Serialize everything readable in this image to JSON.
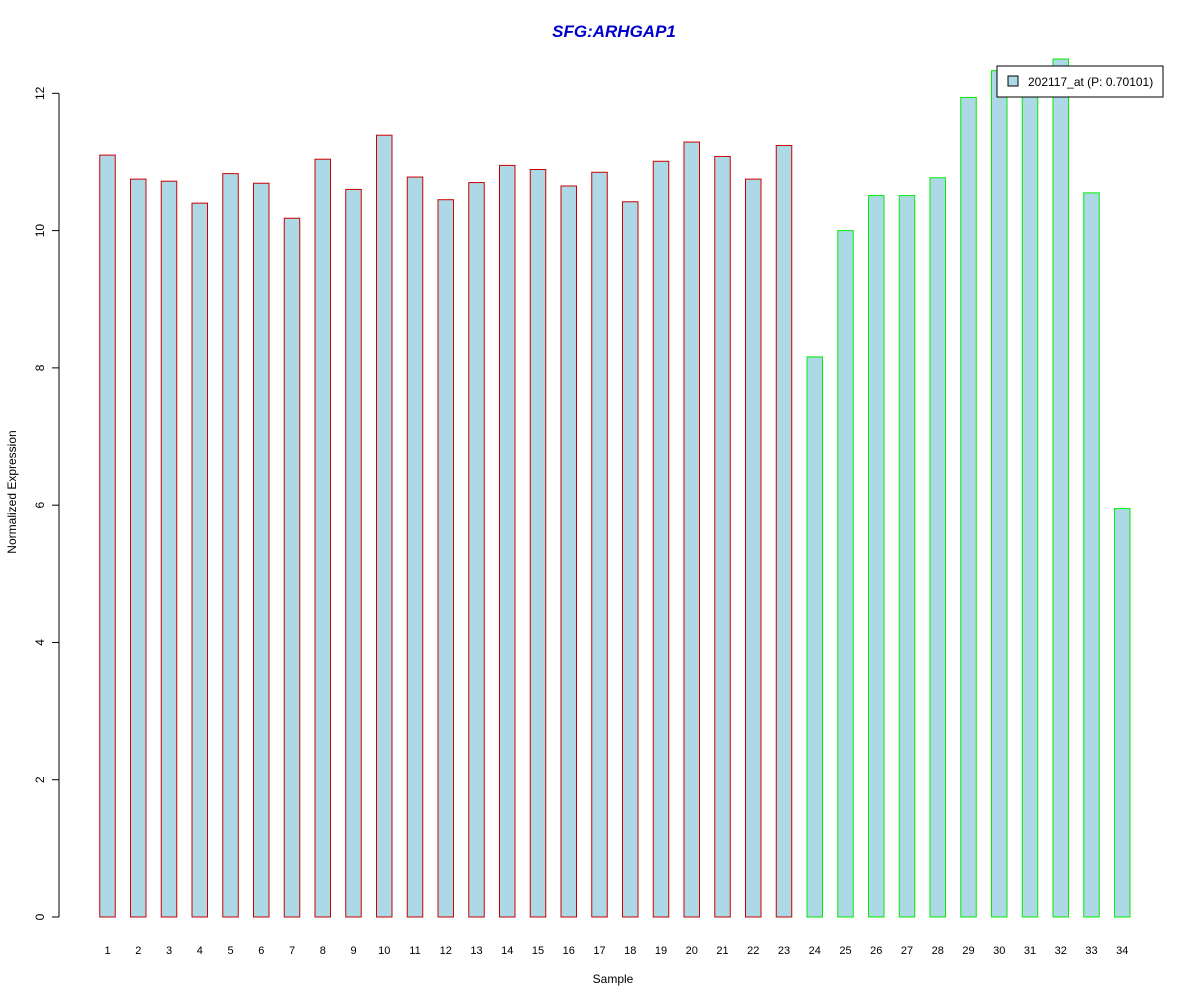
{
  "chart_data": {
    "type": "bar",
    "title": "SFG:ARHGAP1",
    "xlabel": "Sample",
    "ylabel": "Normalized Expression",
    "ylim": [
      0,
      12.5
    ],
    "yticks": [
      0,
      2,
      4,
      6,
      8,
      10,
      12
    ],
    "categories": [
      "1",
      "2",
      "3",
      "4",
      "5",
      "6",
      "7",
      "8",
      "9",
      "10",
      "11",
      "12",
      "13",
      "14",
      "15",
      "16",
      "17",
      "18",
      "19",
      "20",
      "21",
      "22",
      "23",
      "24",
      "25",
      "26",
      "27",
      "28",
      "29",
      "30",
      "31",
      "32",
      "33",
      "34"
    ],
    "series": [
      {
        "name": "202117_at (P: 0.70101)",
        "values": [
          11.1,
          10.75,
          10.72,
          10.4,
          10.83,
          10.69,
          10.18,
          11.04,
          10.6,
          11.39,
          10.78,
          10.45,
          10.7,
          10.95,
          10.89,
          10.65,
          10.85,
          10.42,
          11.01,
          11.29,
          11.08,
          10.75,
          11.24,
          8.16,
          10.0,
          10.51,
          10.51,
          10.77,
          11.94,
          12.33,
          12.04,
          12.5,
          10.55,
          5.95
        ]
      }
    ],
    "bar_fill": "#add8e6",
    "group_border_colors": [
      "#cc0000",
      "#cc0000",
      "#cc0000",
      "#cc0000",
      "#cc0000",
      "#cc0000",
      "#cc0000",
      "#cc0000",
      "#cc0000",
      "#cc0000",
      "#cc0000",
      "#cc0000",
      "#cc0000",
      "#cc0000",
      "#cc0000",
      "#cc0000",
      "#cc0000",
      "#cc0000",
      "#cc0000",
      "#cc0000",
      "#cc0000",
      "#cc0000",
      "#cc0000",
      "#00ee00",
      "#00ee00",
      "#00ee00",
      "#00ee00",
      "#00ee00",
      "#00ee00",
      "#00ee00",
      "#00ee00",
      "#00ee00",
      "#00ee00",
      "#00ee00"
    ],
    "title_color": "#0000cc",
    "grid": false,
    "legend_position": "top-right"
  }
}
